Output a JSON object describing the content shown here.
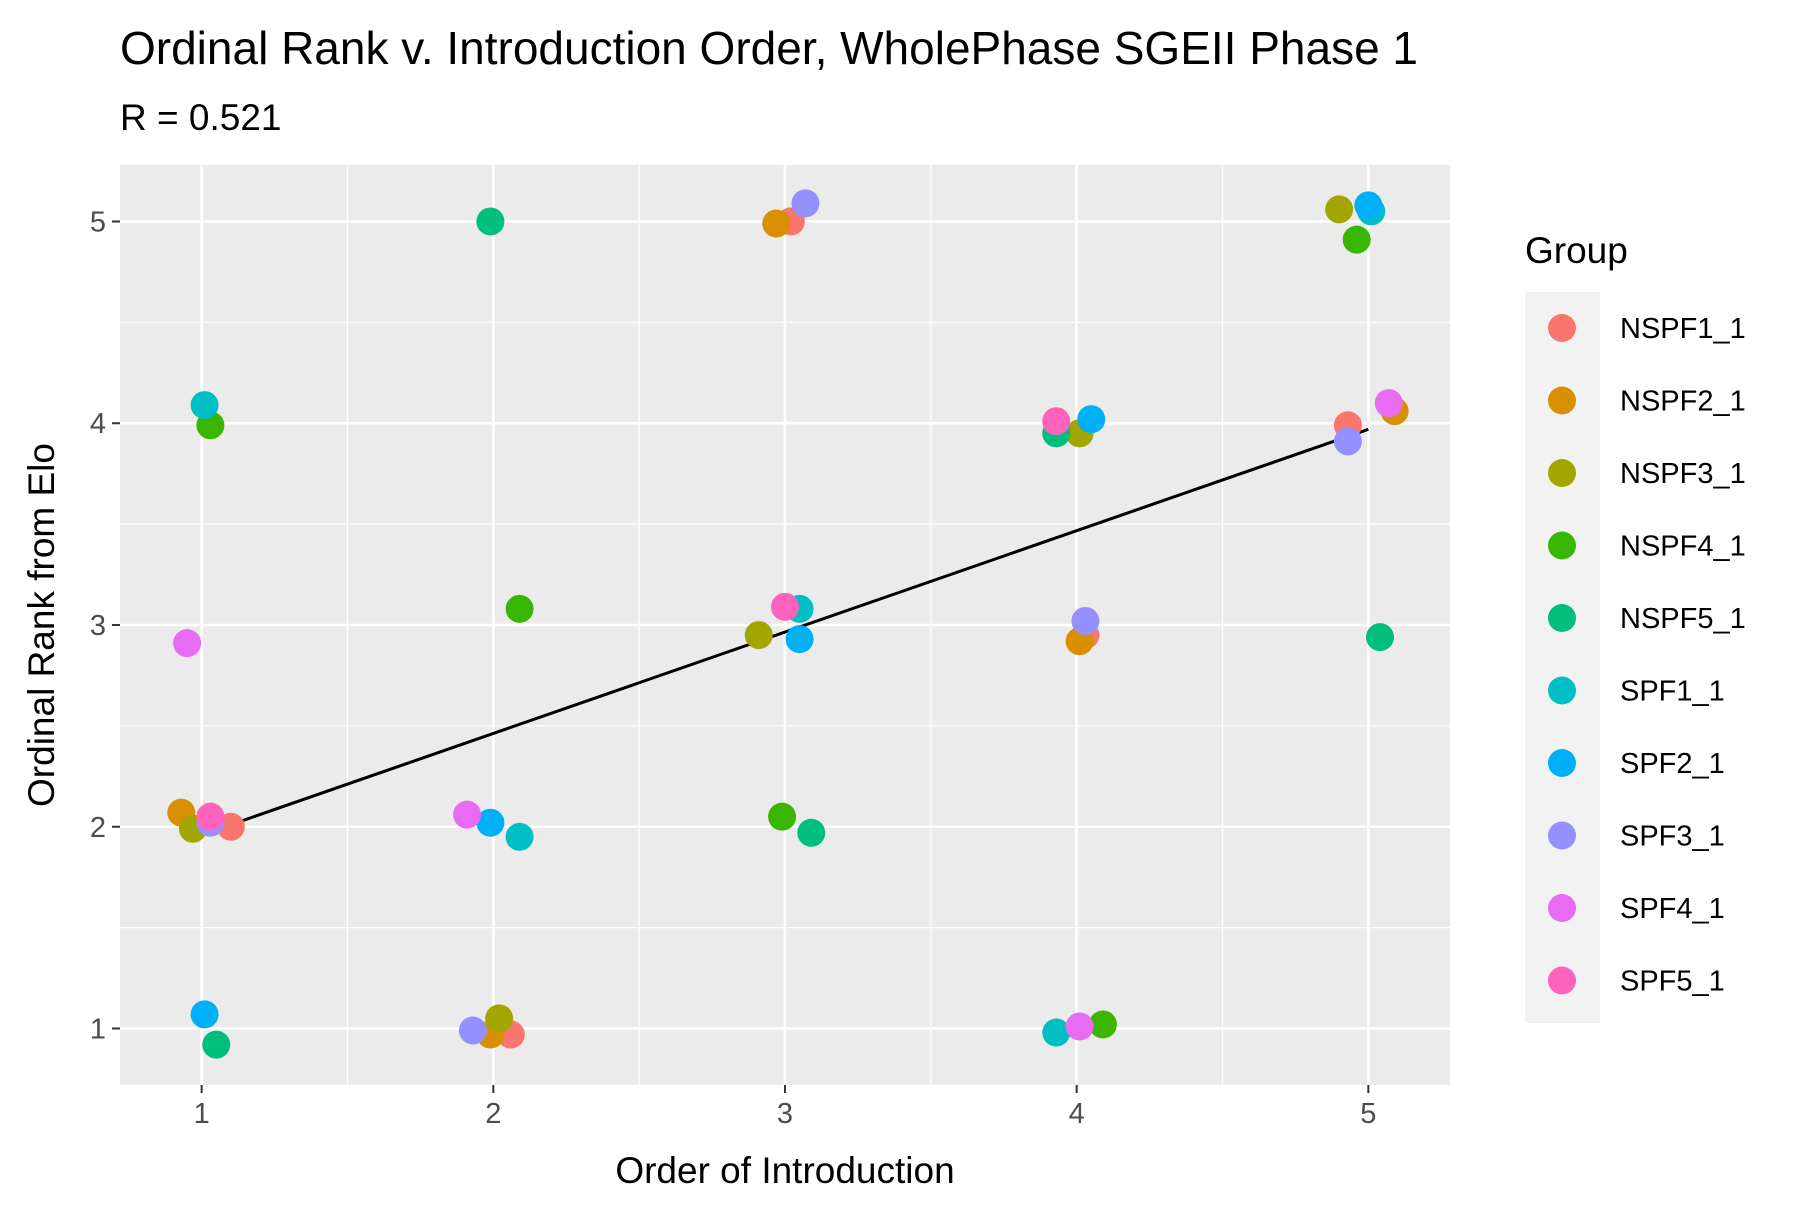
{
  "chart_data": {
    "type": "scatter",
    "title": "Ordinal Rank v. Introduction Order, WholePhase SGEII Phase 1",
    "subtitle": "R = 0.521",
    "xlabel": "Order of Introduction",
    "ylabel": "Ordinal Rank from Elo",
    "xlim": [
      0.72,
      5.28
    ],
    "ylim": [
      0.72,
      5.28
    ],
    "x_ticks": [
      "1",
      "2",
      "3",
      "4",
      "5"
    ],
    "y_ticks": [
      "1",
      "2",
      "3",
      "4",
      "5"
    ],
    "grid": true,
    "legend": {
      "title": "Group",
      "placement": "right"
    },
    "trend_line": {
      "x": [
        1,
        5
      ],
      "y": [
        1.96,
        3.97
      ],
      "color": "#000000"
    },
    "series": [
      {
        "name": "NSPF1_1",
        "color": "#F8766D",
        "points": [
          [
            1.1,
            2.0
          ],
          [
            2.06,
            0.97
          ],
          [
            3.02,
            5.0
          ],
          [
            4.03,
            2.95
          ],
          [
            4.93,
            3.99
          ]
        ]
      },
      {
        "name": "NSPF2_1",
        "color": "#D89000",
        "points": [
          [
            0.93,
            2.07
          ],
          [
            1.99,
            0.97
          ],
          [
            2.97,
            4.99
          ],
          [
            4.01,
            2.92
          ],
          [
            5.09,
            4.06
          ]
        ]
      },
      {
        "name": "NSPF3_1",
        "color": "#A3A500",
        "points": [
          [
            0.97,
            1.99
          ],
          [
            2.02,
            1.05
          ],
          [
            2.91,
            2.95
          ],
          [
            4.01,
            3.95
          ],
          [
            4.9,
            5.06
          ]
        ]
      },
      {
        "name": "NSPF4_1",
        "color": "#39B600",
        "points": [
          [
            1.03,
            3.99
          ],
          [
            2.09,
            3.08
          ],
          [
            2.99,
            2.05
          ],
          [
            4.09,
            1.02
          ],
          [
            4.96,
            4.91
          ]
        ]
      },
      {
        "name": "NSPF5_1",
        "color": "#00BF7D",
        "points": [
          [
            1.05,
            0.92
          ],
          [
            1.99,
            5.0
          ],
          [
            3.09,
            1.97
          ],
          [
            3.93,
            3.95
          ],
          [
            5.04,
            2.94
          ]
        ]
      },
      {
        "name": "SPF1_1",
        "color": "#00BFC4",
        "points": [
          [
            1.01,
            4.09
          ],
          [
            2.09,
            1.95
          ],
          [
            3.05,
            3.08
          ],
          [
            3.93,
            0.98
          ],
          [
            5.01,
            5.05
          ]
        ]
      },
      {
        "name": "SPF2_1",
        "color": "#00B0F6",
        "points": [
          [
            1.01,
            1.07
          ],
          [
            1.99,
            2.02
          ],
          [
            3.05,
            2.93
          ],
          [
            4.05,
            4.02
          ],
          [
            5.0,
            5.08
          ]
        ]
      },
      {
        "name": "SPF3_1",
        "color": "#9590FF",
        "points": [
          [
            1.03,
            2.02
          ],
          [
            1.93,
            0.99
          ],
          [
            3.07,
            5.09
          ],
          [
            4.03,
            3.02
          ],
          [
            4.93,
            3.91
          ]
        ]
      },
      {
        "name": "SPF4_1",
        "color": "#E76BF3",
        "points": [
          [
            0.95,
            2.91
          ],
          [
            1.91,
            2.06
          ],
          [
            4.01,
            1.01
          ],
          [
            5.07,
            4.1
          ]
        ]
      },
      {
        "name": "SPF5_1",
        "color": "#FF62BC",
        "points": [
          [
            1.03,
            2.05
          ],
          [
            3.0,
            3.09
          ],
          [
            3.93,
            4.01
          ]
        ]
      }
    ]
  }
}
